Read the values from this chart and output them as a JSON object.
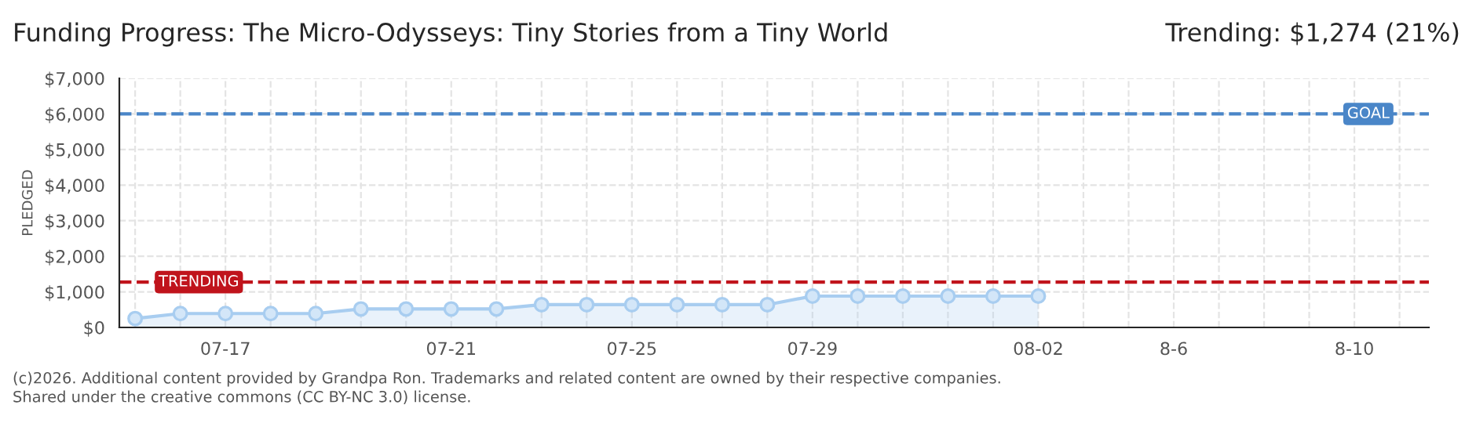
{
  "chart_data": {
    "type": "area",
    "title": "Funding Progress: The Micro-Odysseys: Tiny Stories from a Tiny World",
    "subtitle": "Trending: $1,274 (21%)",
    "ylabel": "PLEDGED",
    "categories": [
      null,
      null,
      "07-17",
      null,
      null,
      null,
      null,
      "07-21",
      null,
      null,
      null,
      "07-25",
      null,
      null,
      null,
      "07-29",
      null,
      null,
      null,
      null,
      "08-02",
      null,
      null,
      "8-6",
      null,
      null,
      null,
      "8-10",
      null
    ],
    "series": [
      {
        "color": "#a8cdf0",
        "values": [
          250,
          390,
          390,
          390,
          390,
          520,
          520,
          520,
          520,
          640,
          640,
          640,
          640,
          640,
          640,
          880,
          880,
          880,
          880,
          880,
          880,
          null,
          null,
          null,
          null,
          null,
          null,
          null,
          null
        ]
      }
    ],
    "ylim": [
      0,
      7000
    ],
    "yticks": [
      {
        "value": 0,
        "label": "$0"
      },
      {
        "value": 1000,
        "label": "$1,000"
      },
      {
        "value": 2000,
        "label": "$2,000"
      },
      {
        "value": 3000,
        "label": "$3,000"
      },
      {
        "value": 4000,
        "label": "$4,000"
      },
      {
        "value": 5000,
        "label": "$5,000"
      },
      {
        "value": 6000,
        "label": "$6,000"
      },
      {
        "value": 7000,
        "label": "$7,000"
      }
    ],
    "ref_lines": [
      {
        "axis": "y",
        "value": 6000,
        "label": "GOAL",
        "color": "#4a86c8",
        "line_style": "dashed"
      },
      {
        "axis": "y",
        "value": 1274,
        "label": "TRENDING",
        "color": "#c0141c",
        "line_style": "dashed"
      }
    ],
    "grid": true,
    "marker": "circle",
    "annotations": [
      "(c)2026. Additional content provided by Grandpa Ron. Trademarks and related content are owned by their respective companies.",
      "Shared under the creative commons (CC BY-NC 3.0) license."
    ]
  }
}
